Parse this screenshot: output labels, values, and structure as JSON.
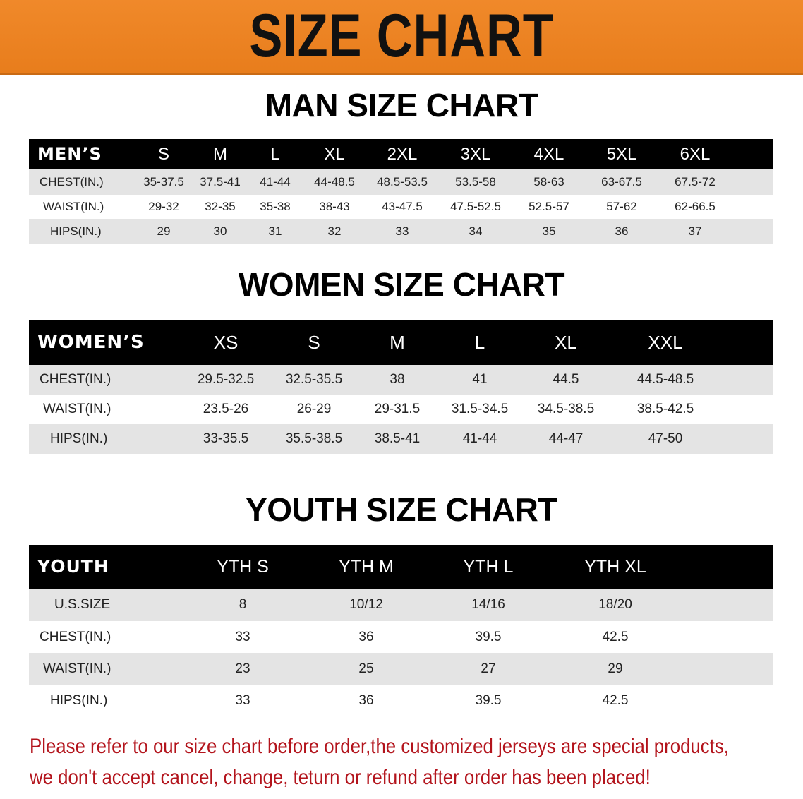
{
  "banner_title": "SIZE CHART",
  "men": {
    "title": "MAN SIZE CHART",
    "header_label": "MEN’S",
    "sizes": [
      "S",
      "M",
      "L",
      "XL",
      "2XL",
      "3XL",
      "4XL",
      "5XL",
      "6XL"
    ],
    "rows": [
      {
        "label": "CHEST(IN.)",
        "values": [
          "35-37.5",
          "37.5-41",
          "41-44",
          "44-48.5",
          "48.5-53.5",
          "53.5-58",
          "58-63",
          "63-67.5",
          "67.5-72"
        ]
      },
      {
        "label": "WAIST(IN.)",
        "values": [
          "29-32",
          "32-35",
          "35-38",
          "38-43",
          "43-47.5",
          "47.5-52.5",
          "52.5-57",
          "57-62",
          "62-66.5"
        ]
      },
      {
        "label": "HIPS(IN.)",
        "values": [
          "29",
          "30",
          "31",
          "32",
          "33",
          "34",
          "35",
          "36",
          "37"
        ]
      }
    ]
  },
  "women": {
    "title": "WOMEN SIZE CHART",
    "header_label": "WOMEN’S",
    "sizes": [
      "XS",
      "S",
      "M",
      "L",
      "XL",
      "XXL"
    ],
    "rows": [
      {
        "label": "CHEST(IN.)",
        "values": [
          "29.5-32.5",
          "32.5-35.5",
          "38",
          "41",
          "44.5",
          "44.5-48.5"
        ]
      },
      {
        "label": "WAIST(IN.)",
        "values": [
          "23.5-26",
          "26-29",
          "29-31.5",
          "31.5-34.5",
          "34.5-38.5",
          "38.5-42.5"
        ]
      },
      {
        "label": "HIPS(IN.)",
        "values": [
          "33-35.5",
          "35.5-38.5",
          "38.5-41",
          "41-44",
          "44-47",
          "47-50"
        ]
      }
    ]
  },
  "youth": {
    "title": "YOUTH SIZE CHART",
    "header_label": "YOUTH",
    "sizes": [
      "YTH S",
      "YTH M",
      "YTH L",
      "YTH XL"
    ],
    "rows": [
      {
        "label": "U.S.SIZE",
        "values": [
          "8",
          "10/12",
          "14/16",
          "18/20"
        ]
      },
      {
        "label": "CHEST(IN.)",
        "values": [
          "33",
          "36",
          "39.5",
          "42.5"
        ]
      },
      {
        "label": "WAIST(IN.)",
        "values": [
          "23",
          "25",
          "27",
          "29"
        ]
      },
      {
        "label": "HIPS(IN.)",
        "values": [
          "33",
          "36",
          "39.5",
          "42.5"
        ]
      }
    ]
  },
  "notice": [
    "Please refer to our size chart before order,the customized jerseys are special products,",
    "we don't accept cancel, change, teturn or refund after order has been placed!"
  ],
  "colors": {
    "banner": "#ec831f",
    "header_bg": "#000000",
    "row_gray": "#e4e4e4",
    "notice": "#b3141c"
  }
}
